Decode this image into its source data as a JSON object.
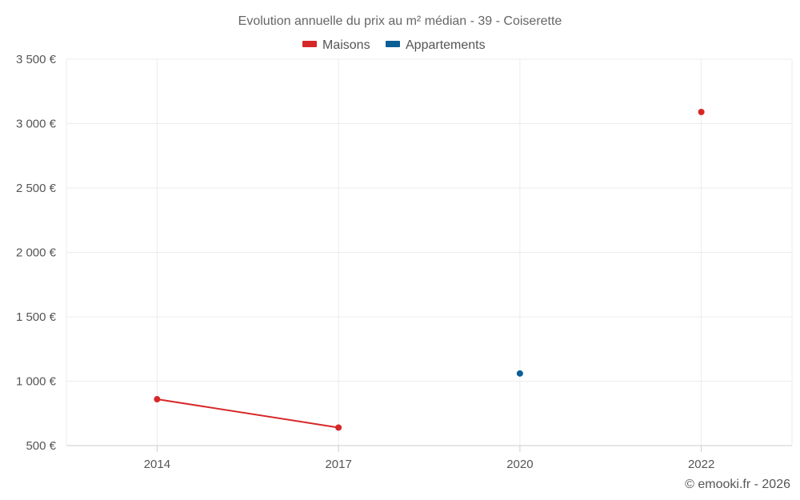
{
  "chart_data": {
    "type": "line",
    "title": "Evolution annuelle du prix au m² médian - 39 - Coiserette",
    "categories": [
      "2014",
      "2017",
      "2020",
      "2022"
    ],
    "series": [
      {
        "name": "Maisons",
        "color": "#d62728",
        "values": [
          860,
          640,
          null,
          3090
        ]
      },
      {
        "name": "Appartements",
        "color": "#0b5f96",
        "values": [
          null,
          null,
          1060,
          null
        ]
      }
    ],
    "ylim": [
      500,
      3500
    ],
    "yticks": [
      500,
      1000,
      1500,
      2000,
      2500,
      3000,
      3500
    ],
    "ytick_labels": [
      "500 €",
      "1 000 €",
      "1 500 €",
      "2 000 €",
      "2 500 €",
      "3 000 €",
      "3 500 €"
    ],
    "xlabel": "",
    "ylabel": "",
    "grid": true,
    "legend_position": "top-center"
  },
  "credit": "© emooki.fr - 2026"
}
